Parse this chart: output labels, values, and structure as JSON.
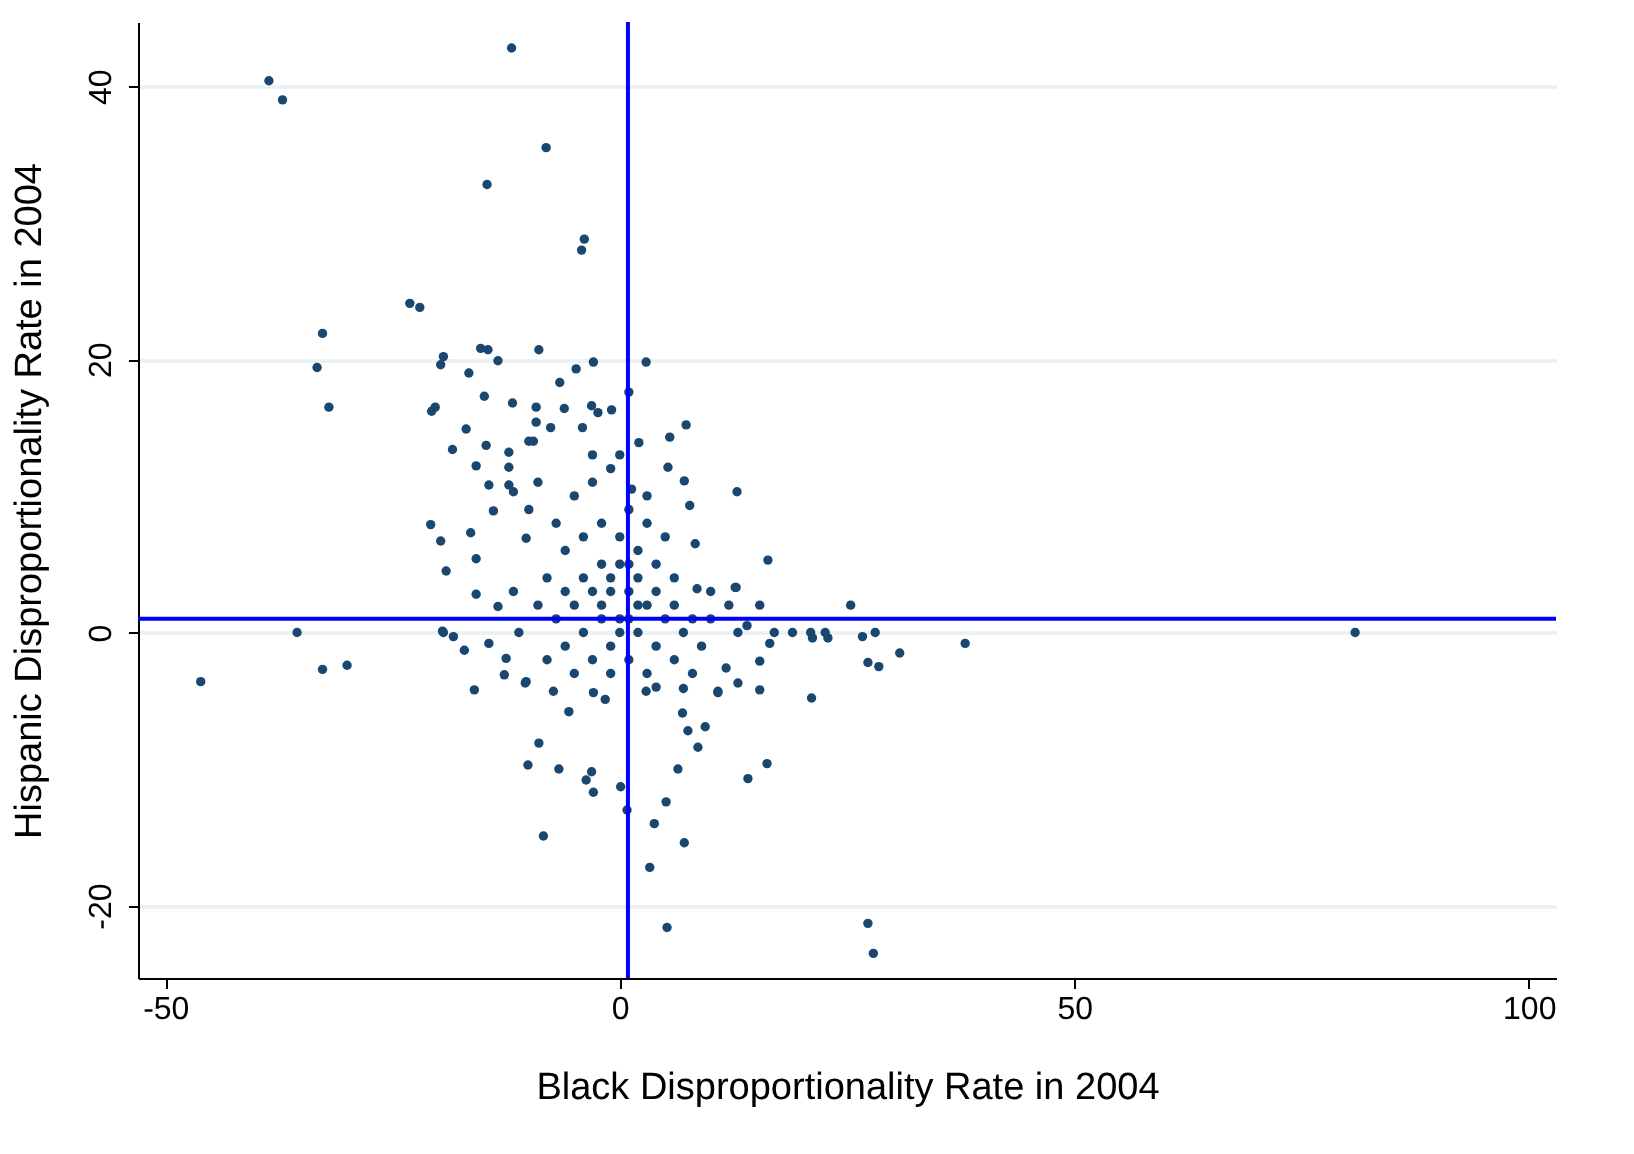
{
  "chart_data": {
    "type": "scatter",
    "xlabel": "Black Disproportionality Rate in 2004",
    "ylabel": "Hispanic Disproportionality Rate in 2004",
    "xlim": [
      -53,
      103
    ],
    "ylim": [
      -25.3,
      44.7
    ],
    "xticks": [
      -50,
      0,
      50,
      100
    ],
    "yticks": [
      -20,
      0,
      20,
      40
    ],
    "grid": "y",
    "marker": "circle",
    "ref_lines": [
      {
        "axis": "x",
        "value": 0.9,
        "color": "#0000ff"
      },
      {
        "axis": "y",
        "value": 1.0,
        "color": "#0000ff"
      }
    ],
    "series": [
      {
        "color": "#1a476f",
        "x": [
          -11.9,
          -38.6,
          -37.1,
          -8.1,
          -14.6,
          -3.9,
          -4.2,
          -23.1,
          -22.0,
          -32.7,
          -33.3,
          -32.0,
          -15.3,
          -14.5,
          -8.9,
          -19.4,
          -19.7,
          -13.4,
          -16.6,
          -4.8,
          -2.9,
          2.9,
          1.0,
          -6.6,
          -14.9,
          -11.8,
          -20.7,
          -20.3,
          -9.2,
          -6.1,
          -2.4,
          -0.9,
          7.3,
          -16.9,
          -9.2,
          -7.6,
          -4.1,
          5.5,
          -18.4,
          -14.7,
          -12.2,
          -10.0,
          5.3,
          7.1,
          -14.4,
          -12.2,
          -3.1,
          12.9,
          16.3,
          -20.8,
          -19.7,
          -16.4,
          -15.8,
          -19.1,
          -15.8,
          -13.9,
          -15.8,
          -12.2,
          -11.7,
          -13.4,
          -19.5,
          -18.3,
          -17.1,
          -14.4,
          -12.5,
          -16.0,
          -32.7,
          -30.0,
          16.5,
          21.2,
          12.8,
          8.5,
          8.3,
          7.7,
          2.1,
          1.3,
          -9.5,
          -10.3,
          -11.7,
          -11.1,
          -10.3,
          -12.7,
          -7.3,
          10.8,
          13.0,
          15.4,
          7.0,
          2.9,
          -46.1,
          -35.5,
          -19.4,
          -8.9,
          -10.1,
          -6.7,
          -5.6,
          -3.7,
          -3.1,
          -2.9,
          0.1,
          0.8,
          -8.4,
          3.8,
          5.1,
          3.3,
          7.1,
          6.4,
          8.6,
          7.5,
          9.4,
          6.9,
          14.1,
          16.2,
          5.2,
          27.3,
          27.9,
          21.1,
          25.4,
          26.7,
          28.1,
          27.3,
          28.5,
          30.8,
          38.0,
          10.8,
          15.4,
          11.7,
          15.4,
          12.7,
          -1.6,
          -2.9,
          -10.4,
          17.0,
          19.0,
          21.0,
          22.6,
          22.9,
          80.9,
          -5,
          -3,
          -1,
          1,
          3,
          5,
          -7,
          -6,
          -4,
          -2,
          0,
          2,
          4,
          6,
          -8,
          -6,
          -4,
          -2,
          0,
          2,
          4,
          6,
          8,
          10,
          -7,
          -5,
          -3,
          -1,
          1,
          3,
          5,
          7,
          -6,
          -4,
          -2,
          0,
          2,
          4,
          6,
          -3,
          -1,
          1,
          3,
          -1,
          0,
          1,
          -2,
          2,
          -1,
          1,
          3,
          -3,
          0,
          12,
          10,
          9,
          13,
          14,
          -9,
          -10,
          -9,
          -8,
          -5,
          4,
          8
        ],
        "values": [
          42.8,
          40.4,
          39.0,
          35.5,
          32.8,
          28.8,
          28.0,
          24.1,
          23.8,
          21.9,
          19.4,
          16.5,
          20.8,
          20.7,
          20.7,
          20.2,
          19.6,
          19.9,
          19.0,
          19.3,
          19.8,
          19.8,
          17.6,
          18.3,
          17.3,
          16.8,
          16.2,
          16.5,
          16.5,
          16.4,
          16.1,
          16.3,
          15.2,
          14.9,
          15.4,
          15.0,
          15.0,
          14.3,
          13.4,
          13.7,
          13.2,
          14.0,
          12.1,
          11.1,
          10.8,
          10.8,
          16.6,
          10.3,
          5.3,
          7.9,
          6.7,
          7.3,
          5.4,
          4.5,
          2.8,
          8.9,
          12.2,
          12.1,
          10.3,
          1.9,
          0.1,
          -0.3,
          -1.3,
          -0.8,
          -1.9,
          -4.2,
          -2.7,
          -2.4,
          -0.8,
          -0.4,
          3.3,
          3.2,
          6.5,
          9.3,
          13.9,
          10.5,
          14.0,
          6.9,
          3.0,
          0.0,
          -3.6,
          -3.1,
          -4.3,
          -4.3,
          -3.7,
          -2.1,
          -4.1,
          -4.3,
          -3.6,
          0.0,
          0.0,
          -8.1,
          -9.7,
          -10.0,
          -5.8,
          -10.8,
          -10.2,
          -11.7,
          -11.3,
          -13.0,
          -14.9,
          -14.0,
          -12.4,
          -17.2,
          -15.4,
          -10.0,
          -8.4,
          -7.2,
          -6.9,
          -5.9,
          -10.7,
          -9.6,
          -21.6,
          -21.3,
          -23.5,
          -4.8,
          2.0,
          -0.3,
          0.0,
          -2.2,
          -2.5,
          -1.5,
          -0.8,
          -4.4,
          -4.2,
          -2.6,
          2.0,
          3.3,
          -4.9,
          -4.4,
          -3.7,
          0.0,
          0.0,
          0.0,
          0.0,
          -0.4,
          0.0,
          10,
          11,
          12,
          9,
          8,
          7,
          8,
          6,
          7,
          8,
          7,
          6,
          5,
          4,
          4,
          3,
          4,
          5,
          5,
          4,
          3,
          2,
          1,
          1,
          1,
          2,
          3,
          3,
          3,
          2,
          1,
          0,
          -1,
          0,
          1,
          1,
          0,
          -1,
          -2,
          -2,
          -1,
          -2,
          -3,
          -3,
          0,
          1,
          2,
          2,
          4,
          5,
          10,
          13,
          13,
          2,
          3,
          -1,
          0,
          0.5,
          11,
          9,
          2,
          -2,
          -3,
          -4,
          -3
        ]
      }
    ]
  }
}
